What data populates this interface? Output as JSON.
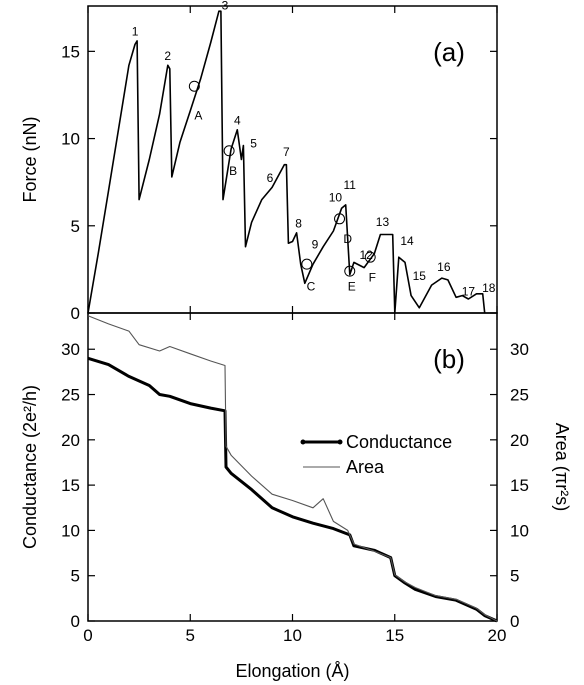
{
  "chart_data": [
    {
      "type": "line",
      "panel_label": "(a)",
      "xlabel": "",
      "ylabel": "Force  (nN)",
      "xlim": [
        0,
        20
      ],
      "ylim": [
        0,
        17.6
      ],
      "x_ticks": [
        "0",
        "5",
        "10",
        "15",
        "20"
      ],
      "y_ticks": [
        "0",
        "5",
        "10",
        "15"
      ],
      "series": [
        {
          "color": "#000000",
          "x": [
            0,
            0.5,
            1.0,
            1.5,
            2.0,
            2.3,
            2.4,
            2.5,
            3.0,
            3.5,
            3.9,
            4.0,
            4.1,
            4.5,
            5.0,
            5.5,
            6.0,
            6.4,
            6.5,
            6.6,
            7.0,
            7.3,
            7.5,
            7.6,
            7.7,
            8.0,
            8.5,
            9.0,
            9.6,
            9.7,
            9.8,
            10.0,
            10.2,
            10.4,
            10.6,
            11.0,
            11.5,
            12.0,
            12.4,
            12.6,
            12.8,
            13.0,
            13.5,
            14.0,
            14.3,
            14.9,
            15.0,
            15.2,
            15.5,
            15.8,
            16.2,
            16.8,
            17.3,
            17.6,
            18.0,
            18.3,
            18.6,
            19.0,
            19.3,
            19.4
          ],
          "y": [
            0,
            3.4,
            7.0,
            10.6,
            14.2,
            15.4,
            15.6,
            6.5,
            8.8,
            11.4,
            14.2,
            14.0,
            7.8,
            9.8,
            11.6,
            13.4,
            15.5,
            17.3,
            17.3,
            6.5,
            9.4,
            10.5,
            8.8,
            9.6,
            3.8,
            5.2,
            6.5,
            7.2,
            8.5,
            8.5,
            4.0,
            4.1,
            4.6,
            2.8,
            1.7,
            2.8,
            3.8,
            4.7,
            6.0,
            6.2,
            2.2,
            2.9,
            2.6,
            3.4,
            4.5,
            4.5,
            0.0,
            3.2,
            2.9,
            1.0,
            0.3,
            1.6,
            2.0,
            1.9,
            0.9,
            1.0,
            0.8,
            1.1,
            1.1,
            0.0
          ]
        }
      ],
      "annotations": [
        {
          "text": "1",
          "x": 2.3,
          "y": 15.9
        },
        {
          "text": "2",
          "x": 3.9,
          "y": 14.5
        },
        {
          "text": "3",
          "x": 6.7,
          "y": 17.4
        },
        {
          "text": "4",
          "x": 7.3,
          "y": 10.8
        },
        {
          "text": "5",
          "x": 8.1,
          "y": 9.5
        },
        {
          "text": "6",
          "x": 8.9,
          "y": 7.5
        },
        {
          "text": "7",
          "x": 9.7,
          "y": 9.0
        },
        {
          "text": "8",
          "x": 10.3,
          "y": 4.9
        },
        {
          "text": "9",
          "x": 11.1,
          "y": 3.7
        },
        {
          "text": "10",
          "x": 12.1,
          "y": 6.4
        },
        {
          "text": "11",
          "x": 12.8,
          "y": 7.1
        },
        {
          "text": "12",
          "x": 13.6,
          "y": 3.1
        },
        {
          "text": "13",
          "x": 14.4,
          "y": 5.0
        },
        {
          "text": "14",
          "x": 15.6,
          "y": 3.9
        },
        {
          "text": "15",
          "x": 16.2,
          "y": 1.9
        },
        {
          "text": "16",
          "x": 17.4,
          "y": 2.4
        },
        {
          "text": "17",
          "x": 18.6,
          "y": 1.0
        },
        {
          "text": "18",
          "x": 19.6,
          "y": 1.2
        },
        {
          "text": "A",
          "x": 5.4,
          "y": 11.1
        },
        {
          "text": "B",
          "x": 7.1,
          "y": 7.9
        },
        {
          "text": "C",
          "x": 10.9,
          "y": 1.3
        },
        {
          "text": "D",
          "x": 12.7,
          "y": 4.0
        },
        {
          "text": "E",
          "x": 12.9,
          "y": 1.3
        },
        {
          "text": "F",
          "x": 13.9,
          "y": 1.8
        }
      ],
      "circled_points": [
        {
          "x": 5.2,
          "y": 13.0
        },
        {
          "x": 6.9,
          "y": 9.3
        },
        {
          "x": 10.7,
          "y": 2.8
        },
        {
          "x": 12.3,
          "y": 5.4
        },
        {
          "x": 12.8,
          "y": 2.4
        },
        {
          "x": 13.8,
          "y": 3.2
        }
      ]
    },
    {
      "type": "line",
      "panel_label": "(b)",
      "xlabel": "Elongation  (Å)",
      "ylabel": "Conductance  (2e²/h)",
      "y2label": "Area  (πr²s)",
      "xlim": [
        0,
        20
      ],
      "ylim": [
        0,
        34
      ],
      "x_ticks": [
        "0",
        "5",
        "10",
        "15",
        "20"
      ],
      "y_ticks": [
        "0",
        "5",
        "10",
        "15",
        "20",
        "25",
        "30"
      ],
      "y2_ticks": [
        "0",
        "5",
        "10",
        "15",
        "20",
        "25",
        "30"
      ],
      "legend_position": "right",
      "series": [
        {
          "name": "Conductance",
          "color": "#000000",
          "x": [
            0,
            1,
            2,
            3,
            3.5,
            4,
            5,
            6,
            6.7,
            6.75,
            7,
            8,
            9,
            10,
            11,
            12,
            12.8,
            13,
            14,
            14.8,
            15,
            15.5,
            16,
            17,
            18,
            19,
            19.4,
            20
          ],
          "y": [
            29.0,
            28.3,
            27.0,
            26.0,
            25.0,
            24.8,
            24.0,
            23.5,
            23.2,
            17.0,
            16.3,
            14.5,
            12.5,
            11.5,
            10.8,
            10.2,
            9.5,
            8.3,
            7.8,
            7.0,
            5.0,
            4.2,
            3.5,
            2.7,
            2.3,
            1.3,
            0.6,
            0.0
          ]
        },
        {
          "name": "Area",
          "color": "#555555",
          "x": [
            0,
            1,
            2,
            2.5,
            3.5,
            4,
            5,
            6,
            6.7,
            6.75,
            7,
            8,
            9,
            10,
            11,
            11.5,
            12,
            12.7,
            13,
            14,
            14.8,
            15,
            15.5,
            16,
            17,
            18,
            19,
            19.4,
            20
          ],
          "y": [
            33.7,
            32.8,
            32.0,
            30.5,
            29.8,
            30.3,
            29.5,
            28.7,
            28.2,
            19.3,
            18.3,
            16.0,
            14.0,
            13.3,
            12.5,
            13.5,
            11.0,
            10.0,
            8.5,
            7.7,
            7.0,
            5.1,
            4.3,
            3.7,
            2.8,
            2.4,
            1.4,
            0.7,
            0.0
          ]
        }
      ]
    }
  ]
}
